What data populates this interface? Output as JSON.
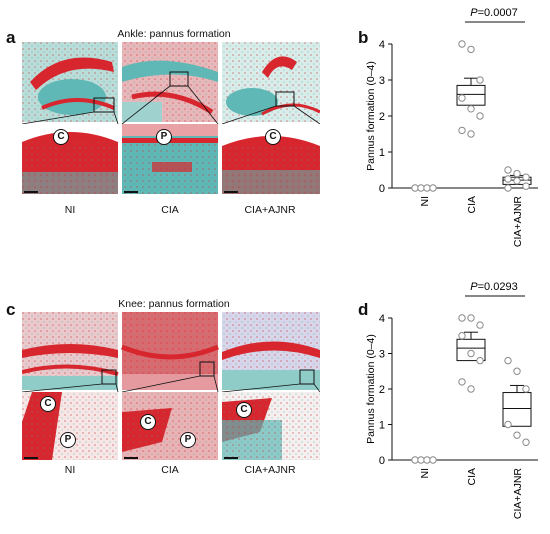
{
  "panels": {
    "a": {
      "letter": "a",
      "title": "Ankle: pannus formation",
      "labels": [
        "NI",
        "CIA",
        "CIA+AJNR"
      ],
      "marker_top": "C",
      "marker_mid": "P",
      "marker_right": "C"
    },
    "c": {
      "letter": "c",
      "title": "Knee: pannus formation",
      "labels": [
        "NI",
        "CIA",
        "CIA+AJNR"
      ],
      "markers": [
        "C",
        "P",
        "C",
        "P",
        "C"
      ]
    },
    "b": {
      "letter": "b"
    },
    "d": {
      "letter": "d"
    }
  },
  "colors": {
    "cartilage_red": "#d8262e",
    "bone_teal": "#5fb8b5",
    "tissue_pink": "#e9a3a6",
    "box_fill": "#ffffff",
    "point_stroke": "#8a8a8a"
  },
  "chart_data": [
    {
      "id": "b",
      "type": "box-scatter",
      "ylabel": "Pannus formation (0–4)",
      "ylim": [
        0,
        4
      ],
      "yticks": [
        "0",
        "1",
        "2",
        "3",
        "4"
      ],
      "categories": [
        "NI",
        "CIA",
        "CIA+AJNR"
      ],
      "points": [
        [
          0,
          0,
          0,
          0
        ],
        [
          4.0,
          3.85,
          3.0,
          2.5,
          2.2,
          2.0,
          1.6,
          1.5
        ],
        [
          0.5,
          0.4,
          0.3,
          0.25,
          0.2,
          0.05,
          0.0
        ]
      ],
      "boxes": [
        null,
        {
          "low": 2.3,
          "high": 2.85,
          "mean": 2.6,
          "whisker": 3.05
        },
        {
          "low": 0.1,
          "high": 0.3,
          "mean": 0.22,
          "whisker": 0.35
        }
      ],
      "comparison": {
        "from": 1,
        "to": 2,
        "text": "P=0.0007"
      }
    },
    {
      "id": "d",
      "type": "box-scatter",
      "ylabel": "Pannus formation (0–4)",
      "ylim": [
        0,
        4
      ],
      "yticks": [
        "0",
        "1",
        "2",
        "3",
        "4"
      ],
      "categories": [
        "NI",
        "CIA",
        "CIA+AJNR"
      ],
      "points": [
        [
          0,
          0,
          0,
          0
        ],
        [
          4.0,
          4.0,
          3.8,
          3.5,
          3.0,
          2.8,
          2.2,
          2.0
        ],
        [
          2.8,
          2.5,
          2.0,
          1.0,
          0.7,
          0.5
        ]
      ],
      "boxes": [
        null,
        {
          "low": 2.8,
          "high": 3.4,
          "mean": 3.15,
          "whisker": 3.6
        },
        {
          "low": 0.95,
          "high": 1.9,
          "mean": 1.45,
          "whisker": 2.1
        }
      ],
      "comparison": {
        "from": 1,
        "to": 2,
        "text": "P=0.0293"
      }
    }
  ]
}
